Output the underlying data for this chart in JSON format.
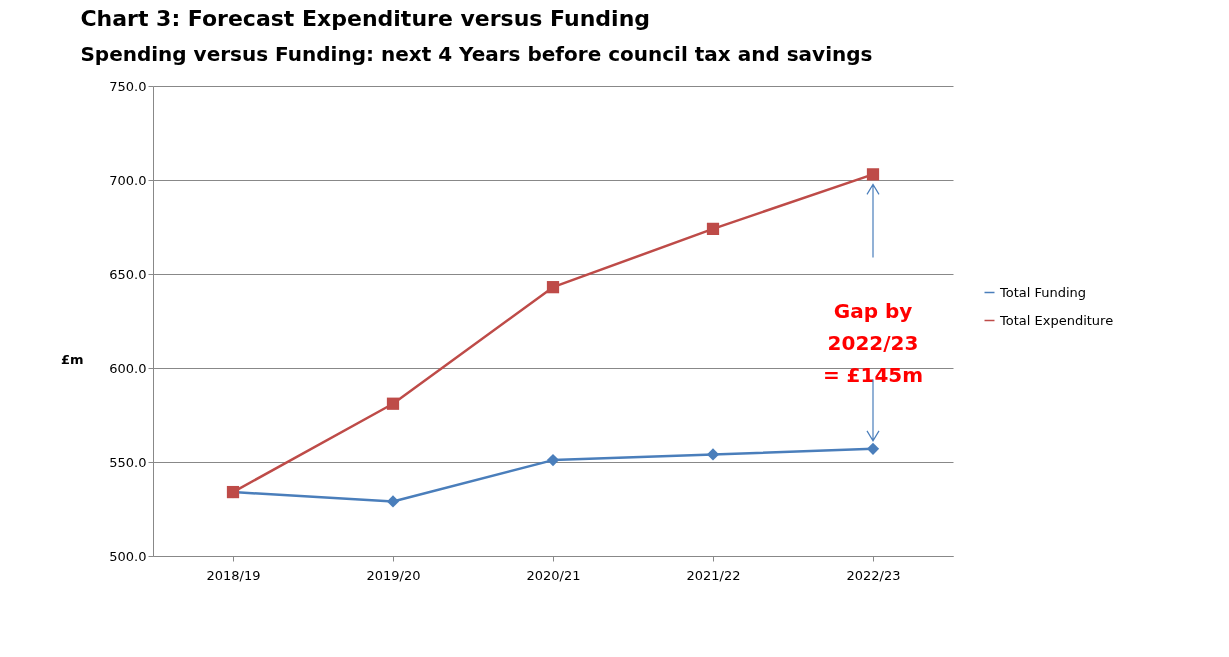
{
  "chart_data": {
    "type": "line",
    "title": "Chart 3: Forecast Expenditure versus Funding",
    "subtitle": "Spending versus Funding: next 4 Years before council tax and savings",
    "ylabel": "£m",
    "categories": [
      "2018/19",
      "2019/20",
      "2020/21",
      "2021/22",
      "2022/23"
    ],
    "series": [
      {
        "name": "Total Funding",
        "color": "#4a7ebb",
        "marker": "diamond",
        "values": [
          534,
          529,
          551,
          554,
          557
        ]
      },
      {
        "name": "Total Expenditure",
        "color": "#be4b48",
        "marker": "square",
        "values": [
          534,
          581,
          643,
          674,
          703
        ]
      }
    ],
    "ylim": [
      500,
      750
    ],
    "yticks": [
      {
        "value": 500,
        "label": "500.0"
      },
      {
        "value": 550,
        "label": "550.0"
      },
      {
        "value": 600,
        "label": "600.0"
      },
      {
        "value": 650,
        "label": "650.0"
      },
      {
        "value": 700,
        "label": "700.0"
      },
      {
        "value": 750,
        "label": "750.0"
      }
    ],
    "grid": "y",
    "legend": "right",
    "annotations": [
      {
        "text": "Gap by 2022/23 = £145m",
        "x": "2022/23",
        "y": 557
      }
    ]
  }
}
